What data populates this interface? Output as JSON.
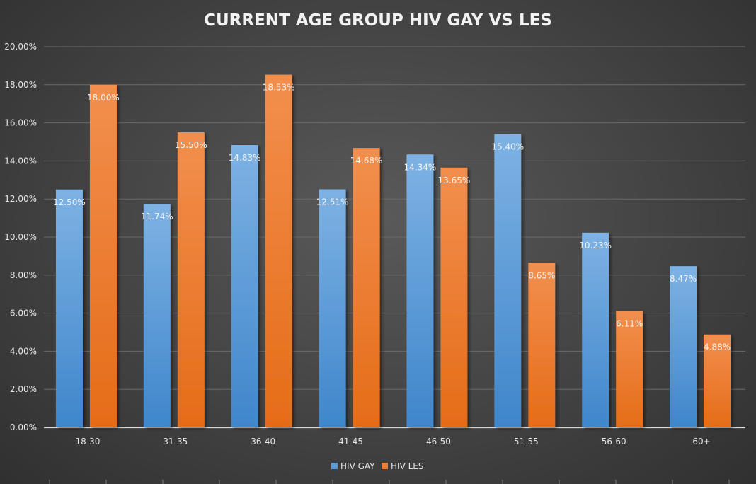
{
  "chart_data": {
    "type": "bar",
    "title": "CURRENT AGE GROUP HIV GAY VS LES",
    "xlabel": "",
    "ylabel": "",
    "ylim": [
      0,
      0.2
    ],
    "yticks": [
      "0.00%",
      "2.00%",
      "4.00%",
      "6.00%",
      "8.00%",
      "10.00%",
      "12.00%",
      "14.00%",
      "16.00%",
      "18.00%",
      "20.00%"
    ],
    "categories": [
      "18-30",
      "31-35",
      "36-40",
      "41-45",
      "46-50",
      "51-55",
      "56-60",
      "60+"
    ],
    "series": [
      {
        "name": "HIV GAY",
        "color": "#5b9bd5",
        "values": [
          0.125,
          0.1174,
          0.1483,
          0.1251,
          0.1434,
          0.154,
          0.1023,
          0.0847
        ],
        "labels": [
          "12.50%",
          "11.74%",
          "14.83%",
          "12.51%",
          "14.34%",
          "15.40%",
          "10.23%",
          "8.47%"
        ]
      },
      {
        "name": "HIV LES",
        "color": "#ed7d31",
        "values": [
          0.18,
          0.155,
          0.1853,
          0.1468,
          0.1365,
          0.0865,
          0.0611,
          0.0488
        ],
        "labels": [
          "18.00%",
          "15.50%",
          "18.53%",
          "14.68%",
          "13.65%",
          "8.65%",
          "6.11%",
          "4.88%"
        ]
      }
    ],
    "grid": true,
    "legend": "bottom"
  }
}
